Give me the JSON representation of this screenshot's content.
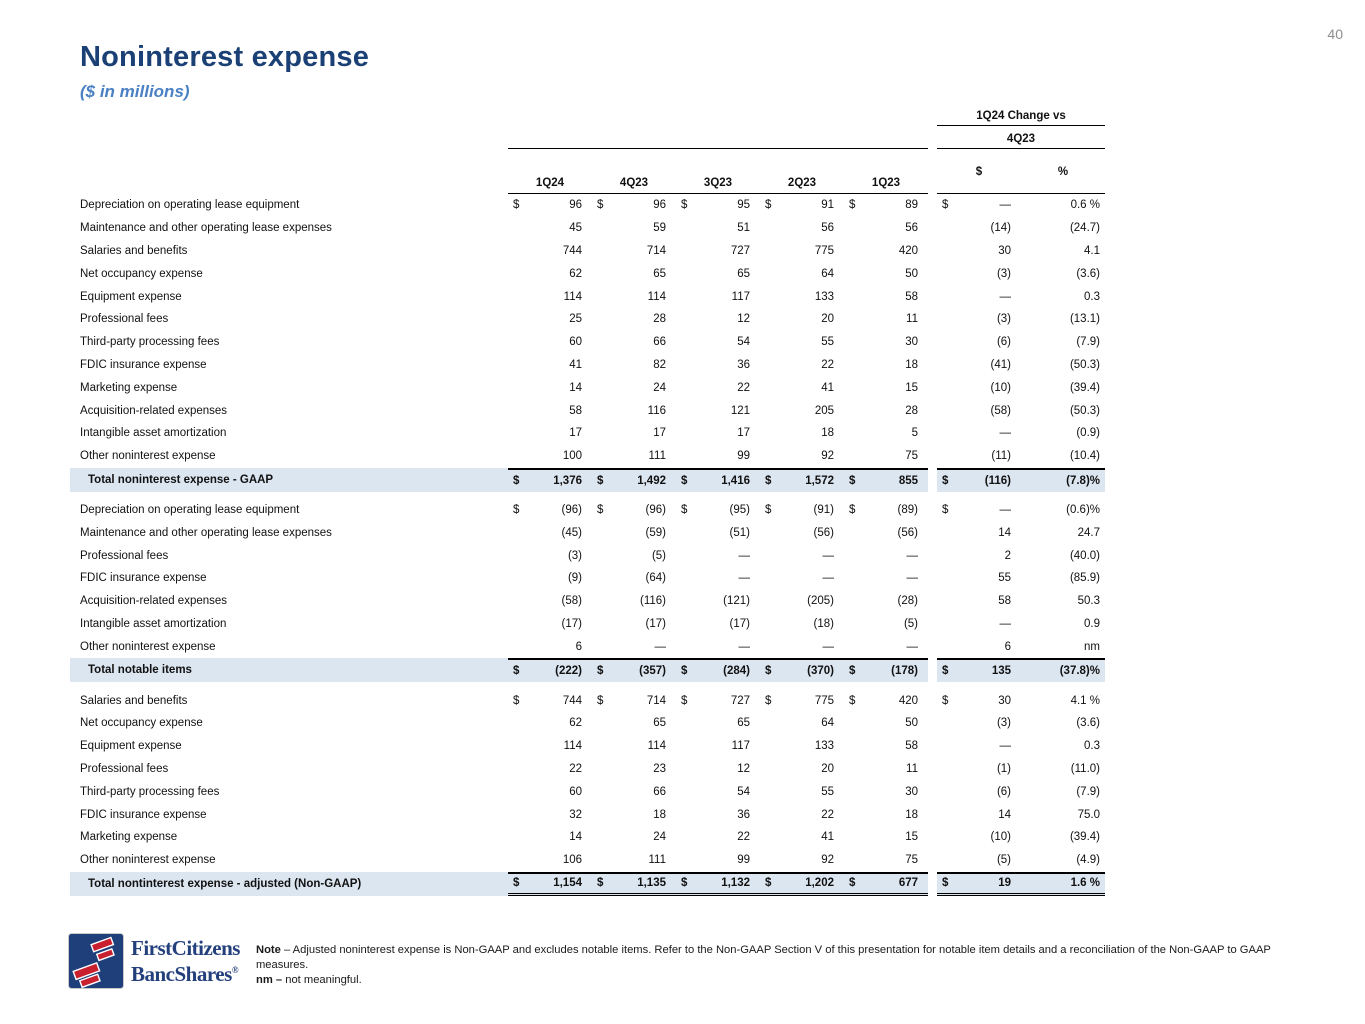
{
  "page": {
    "number": "40"
  },
  "header": {
    "title": "Noninterest expense",
    "subtitle": "($ in millions)"
  },
  "colors": {
    "title-navy": "#1b4075",
    "subtitle-blue": "#4a80c4",
    "highlight": "#dce6f1",
    "logo-navy": "#1e3f7a",
    "logo-red": "#c8202f"
  },
  "table": {
    "change_header": "1Q24 Change vs",
    "change_subheader": "4Q23",
    "change_cols": [
      "$",
      "%"
    ],
    "quarters": [
      "1Q24",
      "4Q23",
      "3Q23",
      "2Q23",
      "1Q23"
    ],
    "sections": [
      {
        "name": "gaap",
        "rows": [
          {
            "label": "Depreciation on operating lease equipment",
            "dollar": true,
            "values": [
              "96",
              "96",
              "95",
              "91",
              "89"
            ],
            "chg": "—",
            "pct": "0.6 %"
          },
          {
            "label": "Maintenance and other operating lease expenses",
            "values": [
              "45",
              "59",
              "51",
              "56",
              "56"
            ],
            "chg": "(14)",
            "pct": "(24.7)"
          },
          {
            "label": "Salaries and benefits",
            "values": [
              "744",
              "714",
              "727",
              "775",
              "420"
            ],
            "chg": "30",
            "pct": "4.1"
          },
          {
            "label": "Net occupancy expense",
            "values": [
              "62",
              "65",
              "65",
              "64",
              "50"
            ],
            "chg": "(3)",
            "pct": "(3.6)"
          },
          {
            "label": "Equipment expense",
            "values": [
              "114",
              "114",
              "117",
              "133",
              "58"
            ],
            "chg": "—",
            "pct": "0.3"
          },
          {
            "label": "Professional fees",
            "values": [
              "25",
              "28",
              "12",
              "20",
              "11"
            ],
            "chg": "(3)",
            "pct": "(13.1)"
          },
          {
            "label": "Third-party processing fees",
            "values": [
              "60",
              "66",
              "54",
              "55",
              "30"
            ],
            "chg": "(6)",
            "pct": "(7.9)"
          },
          {
            "label": "FDIC insurance expense",
            "values": [
              "41",
              "82",
              "36",
              "22",
              "18"
            ],
            "chg": "(41)",
            "pct": "(50.3)"
          },
          {
            "label": "Marketing expense",
            "values": [
              "14",
              "24",
              "22",
              "41",
              "15"
            ],
            "chg": "(10)",
            "pct": "(39.4)"
          },
          {
            "label": "Acquisition-related expenses",
            "values": [
              "58",
              "116",
              "121",
              "205",
              "28"
            ],
            "chg": "(58)",
            "pct": "(50.3)"
          },
          {
            "label": "Intangible asset amortization",
            "values": [
              "17",
              "17",
              "17",
              "18",
              "5"
            ],
            "chg": "—",
            "pct": "(0.9)"
          },
          {
            "label": "Other noninterest expense",
            "values": [
              "100",
              "111",
              "99",
              "92",
              "75"
            ],
            "chg": "(11)",
            "pct": "(10.4)"
          }
        ],
        "total": {
          "label": "Total noninterest expense - GAAP",
          "dollar": true,
          "values": [
            "1,376",
            "1,492",
            "1,416",
            "1,572",
            "855"
          ],
          "chg": "(116)",
          "pct": "(7.8)%"
        }
      },
      {
        "name": "notable-items",
        "rows": [
          {
            "label": "Depreciation on operating lease equipment",
            "dollar": true,
            "values": [
              "(96)",
              "(96)",
              "(95)",
              "(91)",
              "(89)"
            ],
            "chg": "—",
            "pct": "(0.6)%"
          },
          {
            "label": "Maintenance and other operating lease expenses",
            "values": [
              "(45)",
              "(59)",
              "(51)",
              "(56)",
              "(56)"
            ],
            "chg": "14",
            "pct": "24.7"
          },
          {
            "label": "Professional fees",
            "values": [
              "(3)",
              "(5)",
              "—",
              "—",
              "—"
            ],
            "chg": "2",
            "pct": "(40.0)"
          },
          {
            "label": "FDIC insurance expense",
            "values": [
              "(9)",
              "(64)",
              "—",
              "—",
              "—"
            ],
            "chg": "55",
            "pct": "(85.9)"
          },
          {
            "label": "Acquisition-related expenses",
            "values": [
              "(58)",
              "(116)",
              "(121)",
              "(205)",
              "(28)"
            ],
            "chg": "58",
            "pct": "50.3"
          },
          {
            "label": "Intangible asset amortization",
            "values": [
              "(17)",
              "(17)",
              "(17)",
              "(18)",
              "(5)"
            ],
            "chg": "—",
            "pct": "0.9"
          },
          {
            "label": "Other noninterest expense",
            "values": [
              "6",
              "—",
              "—",
              "—",
              "—"
            ],
            "chg": "6",
            "pct": "nm"
          }
        ],
        "total": {
          "label": "Total notable items",
          "dollar": true,
          "values": [
            "(222)",
            "(357)",
            "(284)",
            "(370)",
            "(178)"
          ],
          "chg": "135",
          "pct": "(37.8)%"
        }
      },
      {
        "name": "adjusted-non-gaap",
        "rows": [
          {
            "label": "Salaries and benefits",
            "dollar": true,
            "values": [
              "744",
              "714",
              "727",
              "775",
              "420"
            ],
            "chg": "30",
            "pct": "4.1 %"
          },
          {
            "label": "Net occupancy expense",
            "values": [
              "62",
              "65",
              "65",
              "64",
              "50"
            ],
            "chg": "(3)",
            "pct": "(3.6)"
          },
          {
            "label": "Equipment expense",
            "values": [
              "114",
              "114",
              "117",
              "133",
              "58"
            ],
            "chg": "—",
            "pct": "0.3"
          },
          {
            "label": "Professional fees",
            "values": [
              "22",
              "23",
              "12",
              "20",
              "11"
            ],
            "chg": "(1)",
            "pct": "(11.0)"
          },
          {
            "label": "Third-party processing fees",
            "values": [
              "60",
              "66",
              "54",
              "55",
              "30"
            ],
            "chg": "(6)",
            "pct": "(7.9)"
          },
          {
            "label": "FDIC insurance expense",
            "values": [
              "32",
              "18",
              "36",
              "22",
              "18"
            ],
            "chg": "14",
            "pct": "75.0"
          },
          {
            "label": "Marketing expense",
            "values": [
              "14",
              "24",
              "22",
              "41",
              "15"
            ],
            "chg": "(10)",
            "pct": "(39.4)"
          },
          {
            "label": "Other noninterest expense",
            "values": [
              "106",
              "111",
              "99",
              "92",
              "75"
            ],
            "chg": "(5)",
            "pct": "(4.9)"
          }
        ],
        "total": {
          "label": "Total nontinterest expense - adjusted (Non-GAAP)",
          "dollar": true,
          "double_underline": true,
          "values": [
            "1,154",
            "1,135",
            "1,132",
            "1,202",
            "677"
          ],
          "chg": "19",
          "pct": "1.6 %"
        }
      }
    ]
  },
  "footer": {
    "logo_line1": "FirstCitizens",
    "logo_line2": "BancShares",
    "logo_reg": "®",
    "note_label": "Note",
    "note_text": " – Adjusted noninterest expense is Non-GAAP and excludes notable items. Refer to the Non-GAAP Section V of this presentation for notable item details and a reconciliation of the Non-GAAP to GAAP measures.",
    "nm_label": "nm –",
    "nm_text": " not meaningful."
  }
}
